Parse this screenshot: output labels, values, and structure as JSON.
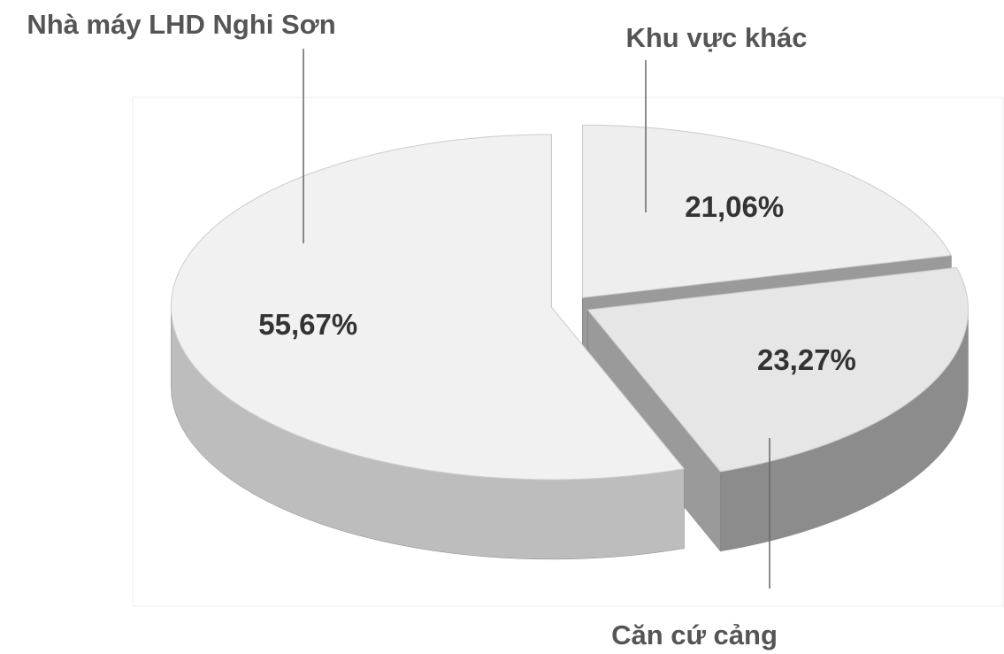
{
  "chart_data": {
    "type": "pie3d",
    "categories": [
      "Khu vực khác",
      "Căn cứ cảng",
      "Nhà máy LHD Nghi Sơn"
    ],
    "values": [
      21.06,
      23.27,
      55.67
    ],
    "value_labels": [
      "21,06%",
      "23,27%",
      "55,67%"
    ],
    "colors": [
      "#eeeeee",
      "#e6e6e6",
      "#f1f1f1"
    ]
  }
}
